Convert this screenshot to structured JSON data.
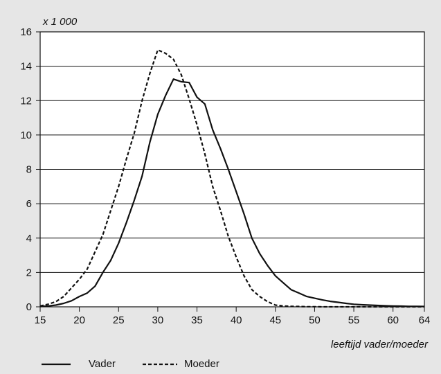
{
  "chart_data": {
    "type": "line",
    "title": "",
    "xlabel": "leeftijd vader/moeder",
    "ylabel": "x 1 000",
    "xlim": [
      15,
      64
    ],
    "ylim": [
      0,
      16
    ],
    "x_ticks": [
      "15",
      "20",
      "25",
      "30",
      "35",
      "40",
      "45",
      "50",
      "55",
      "60",
      "64"
    ],
    "y_ticks": [
      "0",
      "2",
      "4",
      "6",
      "8",
      "10",
      "12",
      "14",
      "16"
    ],
    "grid": "horizontal",
    "legend_position": "bottom-left",
    "series": [
      {
        "name": "Vader",
        "style": "solid",
        "x": [
          15,
          16,
          17,
          18,
          19,
          20,
          21,
          22,
          23,
          24,
          25,
          26,
          27,
          28,
          29,
          30,
          31,
          32,
          33,
          34,
          35,
          36,
          37,
          38,
          39,
          40,
          41,
          42,
          43,
          44,
          45,
          46,
          47,
          48,
          49,
          50,
          51,
          52,
          53,
          54,
          55,
          56,
          57,
          58,
          59,
          60,
          61,
          62,
          63,
          64
        ],
        "y": [
          0.02,
          0.05,
          0.1,
          0.2,
          0.35,
          0.6,
          0.8,
          1.2,
          2.0,
          2.7,
          3.7,
          4.9,
          6.2,
          7.6,
          9.6,
          11.2,
          12.3,
          13.25,
          13.1,
          13.05,
          12.2,
          11.8,
          10.3,
          9.2,
          8.0,
          6.7,
          5.4,
          4.0,
          3.1,
          2.4,
          1.8,
          1.4,
          1.0,
          0.8,
          0.6,
          0.5,
          0.4,
          0.32,
          0.26,
          0.2,
          0.15,
          0.12,
          0.1,
          0.08,
          0.06,
          0.05,
          0.04,
          0.03,
          0.03,
          0.02
        ]
      },
      {
        "name": "Moeder",
        "style": "dashed",
        "x": [
          15,
          16,
          17,
          18,
          19,
          20,
          21,
          22,
          23,
          24,
          25,
          26,
          27,
          28,
          29,
          30,
          31,
          32,
          33,
          34,
          35,
          36,
          37,
          38,
          39,
          40,
          41,
          42,
          43,
          44,
          45,
          46,
          47,
          48,
          49,
          50,
          51,
          52,
          53,
          54,
          55,
          56,
          57,
          58,
          59,
          60,
          61,
          62,
          63,
          64
        ],
        "y": [
          0.05,
          0.15,
          0.3,
          0.6,
          1.1,
          1.6,
          2.2,
          3.2,
          4.2,
          5.6,
          7.0,
          8.6,
          10.1,
          12.0,
          13.6,
          14.95,
          14.75,
          14.4,
          13.5,
          12.1,
          10.6,
          8.9,
          7.0,
          5.6,
          4.1,
          2.9,
          1.8,
          1.0,
          0.6,
          0.3,
          0.1,
          0.05,
          0.03,
          0.02,
          0.01,
          0.01,
          0.0,
          0.0,
          0.0,
          0.0,
          0.0,
          0.0,
          0.0,
          0.0,
          0.0,
          0.0,
          0.0,
          0.0,
          0.0,
          0.0
        ]
      }
    ]
  }
}
